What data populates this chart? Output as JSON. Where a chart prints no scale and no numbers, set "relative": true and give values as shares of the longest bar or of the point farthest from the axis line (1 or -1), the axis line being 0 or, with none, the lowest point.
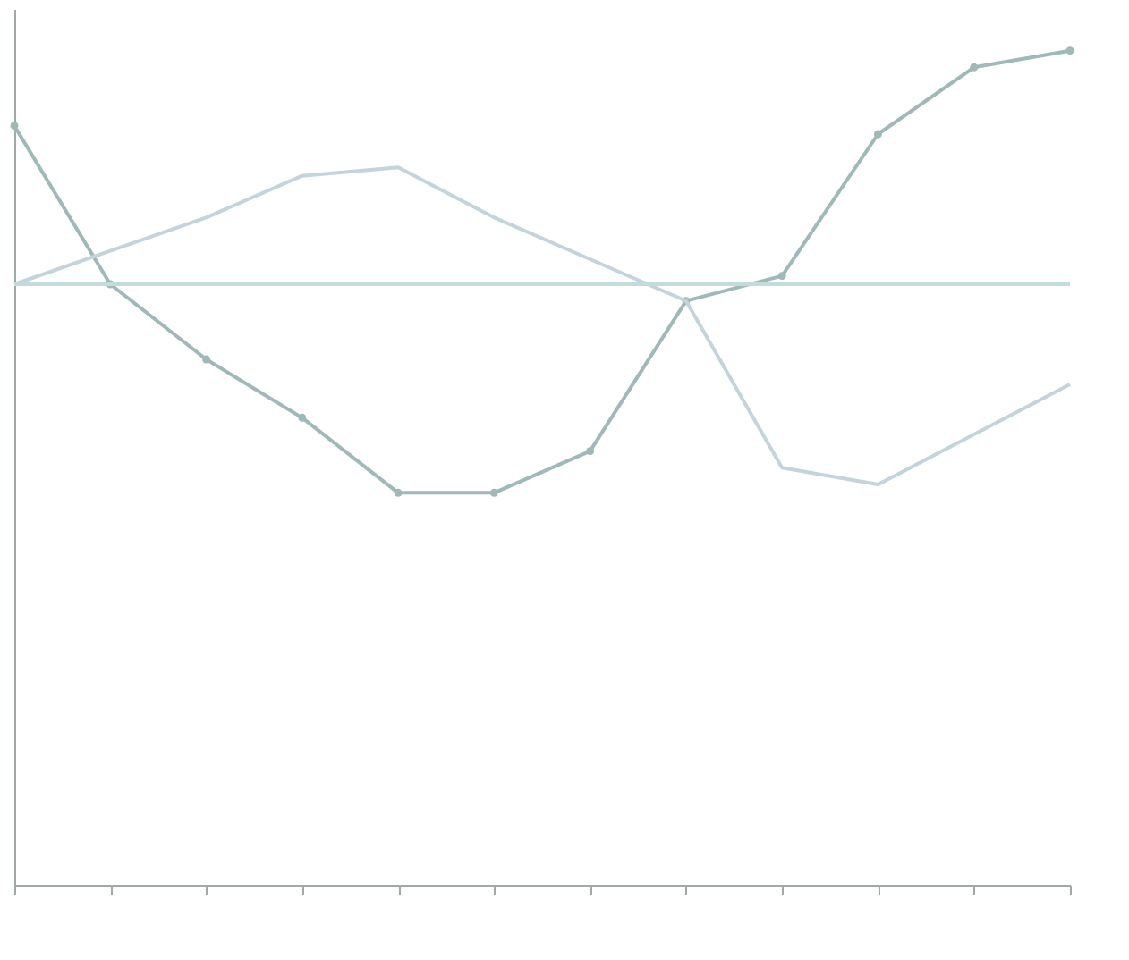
{
  "chart_data": {
    "type": "line",
    "relative": true,
    "line_style": "solid",
    "categories": [
      null,
      null,
      null,
      null,
      null,
      null,
      null,
      null,
      null,
      null,
      null,
      null
    ],
    "series": [
      {
        "color": "#9fb8b8",
        "marker": "circle",
        "values": [
          0.91,
          0.72,
          0.63,
          0.56,
          0.47,
          0.47,
          0.52,
          0.7,
          0.73,
          0.9,
          0.98,
          1.0
        ]
      },
      {
        "color": "#c4d4dc",
        "values": [
          0.72,
          0.76,
          0.8,
          0.85,
          0.86,
          0.8,
          0.75,
          0.7,
          0.5,
          0.48,
          0.54,
          0.6
        ]
      },
      {
        "color": "#c0dcdc",
        "values": [
          0.72,
          0.72,
          0.72,
          0.72,
          0.72,
          0.72,
          0.72,
          0.72,
          0.72,
          0.72,
          0.72,
          0.72
        ]
      }
    ]
  }
}
